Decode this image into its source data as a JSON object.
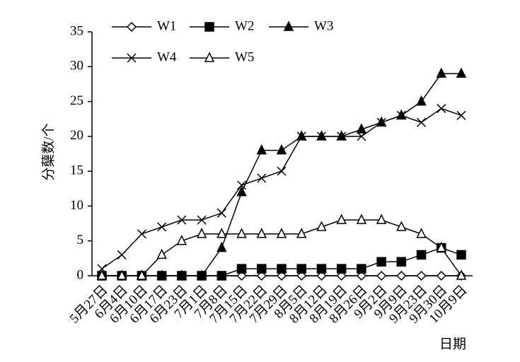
{
  "chart_data": {
    "type": "line",
    "y_label": "分蘖数/个",
    "x_label": "日期",
    "categories": [
      "5月27日",
      "6月4日",
      "6月10日",
      "6月17日",
      "6月23日",
      "7月1日",
      "7月8日",
      "7月15日",
      "7月22日",
      "7月29日",
      "8月5日",
      "8月12日",
      "8月19日",
      "8月26日",
      "9月2日",
      "9月9日",
      "9月23日",
      "9月30日",
      "10月9日"
    ],
    "series": [
      {
        "name": "W1",
        "color": "#000000",
        "marker": "diamond-open",
        "values": [
          0,
          0,
          0,
          0,
          0,
          0,
          0,
          0,
          0,
          0,
          0,
          0,
          0,
          0,
          0,
          0,
          0,
          0,
          0
        ]
      },
      {
        "name": "W2",
        "color": "#000000",
        "marker": "square",
        "values": [
          0,
          0,
          0,
          0,
          0,
          0,
          0,
          1,
          1,
          1,
          1,
          1,
          1,
          1,
          2,
          2,
          3,
          4,
          3
        ]
      },
      {
        "name": "W3",
        "color": "#000000",
        "marker": "triangle",
        "values": [
          0,
          0,
          0,
          0,
          0,
          0,
          4,
          12,
          18,
          18,
          20,
          20,
          20,
          21,
          22,
          23,
          25,
          29,
          29
        ]
      },
      {
        "name": "W4",
        "color": "#000000",
        "marker": "x",
        "values": [
          1,
          3,
          6,
          7,
          8,
          8,
          9,
          13,
          14,
          15,
          20,
          20,
          20,
          20,
          22,
          23,
          22,
          24,
          23
        ]
      },
      {
        "name": "W5",
        "color": "#000000",
        "marker": "triangle-open",
        "values": [
          0,
          0,
          0,
          3,
          5,
          6,
          6,
          6,
          6,
          6,
          6,
          7,
          8,
          8,
          8,
          7,
          6,
          4,
          0
        ]
      }
    ],
    "ylim": [
      0,
      35
    ],
    "yticks": [
      0,
      5,
      10,
      15,
      20,
      25,
      30,
      35
    ],
    "grid": false
  }
}
